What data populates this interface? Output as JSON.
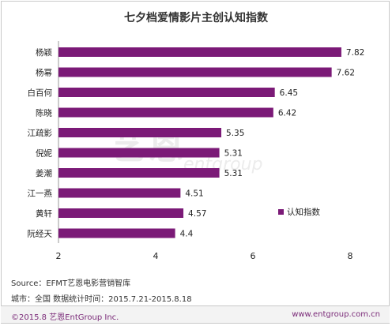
{
  "chart_data": {
    "type": "bar",
    "orientation": "horizontal",
    "title": "七夕档爱情影片主创认知指数",
    "categories": [
      "杨颖",
      "杨幂",
      "白百何",
      "陈晓",
      "江疏影",
      "倪妮",
      "姜潮",
      "江一燕",
      "黄轩",
      "阮经天"
    ],
    "series": [
      {
        "name": "认知指数",
        "values": [
          7.82,
          7.62,
          6.45,
          6.42,
          5.35,
          5.31,
          5.31,
          4.51,
          4.57,
          4.4
        ]
      }
    ],
    "data_labels": [
      "7.82",
      "7.62",
      "6.45",
      "6.42",
      "5.35",
      "5.31",
      "5.31",
      "4.51",
      "4.57",
      "4.4"
    ],
    "xlim": [
      2,
      8
    ],
    "x_ticks": [
      "2",
      "4",
      "6",
      "8"
    ],
    "legend_position": "right",
    "bar_color": "#7b1a77",
    "grid": false
  },
  "watermark": {
    "cn": "艺恩",
    "en": "entgroup"
  },
  "source_text": "Source：EFMT艺恩电影营销智库",
  "scope_text": "城市：全国   数据统计时间：2015.7.21-2015.8.18",
  "footer": {
    "copyright": "©2015.8 艺恩EntGroup Inc.",
    "website": "www.entgroup.com.cn"
  }
}
